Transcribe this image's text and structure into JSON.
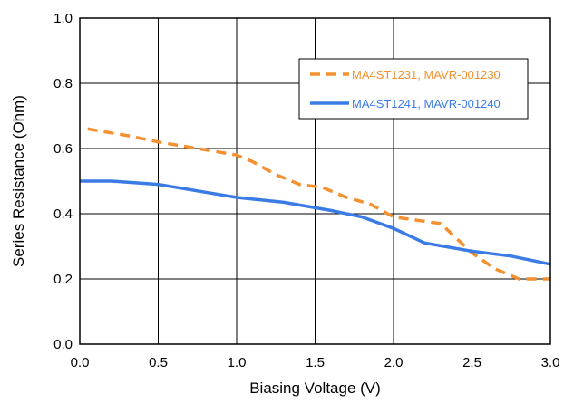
{
  "chart_data": {
    "type": "line",
    "title": "",
    "xlabel": "Biasing Voltage (V)",
    "ylabel": "Series Resistance (Ohm)",
    "xlim": [
      0,
      3
    ],
    "ylim": [
      0,
      1
    ],
    "xticks": [
      "0.0",
      "0.5",
      "1.0",
      "1.5",
      "2.0",
      "2.5",
      "3.0"
    ],
    "yticks": [
      "0.0",
      "0.2",
      "0.4",
      "0.6",
      "0.8",
      "1.0"
    ],
    "grid": true,
    "legend_position": "top-right",
    "series": [
      {
        "name": "MA4ST1231, MAVR-001230",
        "color": "#f4902f",
        "dash": "dashed",
        "x": [
          0.05,
          0.3,
          0.5,
          0.75,
          1.0,
          1.1,
          1.25,
          1.4,
          1.55,
          1.7,
          1.85,
          2.0,
          2.15,
          2.3,
          2.5,
          2.65,
          2.8,
          3.0
        ],
        "y": [
          0.66,
          0.64,
          0.62,
          0.6,
          0.58,
          0.56,
          0.52,
          0.49,
          0.48,
          0.45,
          0.43,
          0.39,
          0.38,
          0.37,
          0.28,
          0.23,
          0.2,
          0.2
        ]
      },
      {
        "name": "MA4ST1241, MAVR-001240",
        "color": "#3b7be6",
        "dash": "solid",
        "x": [
          0.0,
          0.2,
          0.5,
          0.75,
          1.0,
          1.3,
          1.6,
          1.8,
          2.0,
          2.2,
          2.5,
          2.75,
          3.0
        ],
        "y": [
          0.5,
          0.5,
          0.49,
          0.47,
          0.45,
          0.435,
          0.41,
          0.39,
          0.355,
          0.31,
          0.285,
          0.27,
          0.245
        ]
      }
    ]
  }
}
